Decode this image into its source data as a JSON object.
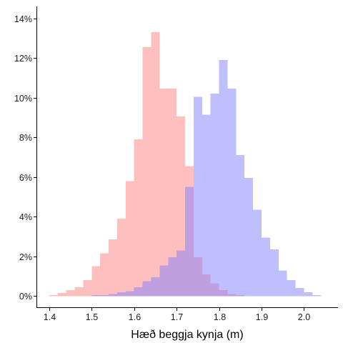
{
  "chart_data": {
    "type": "bar",
    "subtype": "overlapping-histogram",
    "title": "",
    "xlabel": "Hæð beggja kynja (m)",
    "ylabel": "",
    "xlim": [
      1.37,
      2.08
    ],
    "ylim": [
      -0.6,
      14.6
    ],
    "x_ticks": [
      1.4,
      1.5,
      1.6,
      1.7,
      1.8,
      1.9,
      2.0
    ],
    "x_tick_labels": [
      "1.4",
      "1.5",
      "1.6",
      "1.7",
      "1.8",
      "1.9",
      "2.0"
    ],
    "y_ticks": [
      0,
      2,
      4,
      6,
      8,
      10,
      12,
      14
    ],
    "y_tick_labels": [
      "0%",
      "2%",
      "4%",
      "6%",
      "8%",
      "10%",
      "12%",
      "14%"
    ],
    "bin_width": 0.02,
    "grid": false,
    "legend": "none",
    "series": [
      {
        "color": "#ff8080",
        "bin_starts": [
          1.4,
          1.42,
          1.44,
          1.46,
          1.48,
          1.5,
          1.52,
          1.54,
          1.56,
          1.58,
          1.6,
          1.62,
          1.64,
          1.66,
          1.68,
          1.7,
          1.72,
          1.74,
          1.76,
          1.78,
          1.8,
          1.82,
          1.84
        ],
        "values": [
          0.05,
          0.15,
          0.3,
          0.45,
          0.8,
          1.5,
          2.15,
          2.85,
          3.9,
          5.8,
          7.9,
          12.55,
          13.3,
          10.45,
          10.45,
          9.05,
          6.55,
          1.95,
          1.1,
          0.65,
          0.3,
          0.1,
          0.05
        ]
      },
      {
        "color": "#8080ff",
        "bin_starts": [
          1.5,
          1.52,
          1.54,
          1.56,
          1.58,
          1.6,
          1.62,
          1.64,
          1.66,
          1.68,
          1.7,
          1.72,
          1.74,
          1.76,
          1.78,
          1.8,
          1.82,
          1.84,
          1.86,
          1.88,
          1.9,
          1.92,
          1.94,
          1.96,
          1.98,
          2.0,
          2.02
        ],
        "values": [
          0.05,
          0.05,
          0.1,
          0.2,
          0.25,
          0.45,
          0.75,
          0.95,
          1.55,
          1.95,
          2.3,
          5.5,
          10.05,
          9.15,
          10.2,
          11.9,
          10.45,
          7.1,
          5.95,
          4.35,
          2.95,
          2.35,
          1.3,
          0.8,
          0.4,
          0.2,
          0.05
        ]
      }
    ]
  }
}
